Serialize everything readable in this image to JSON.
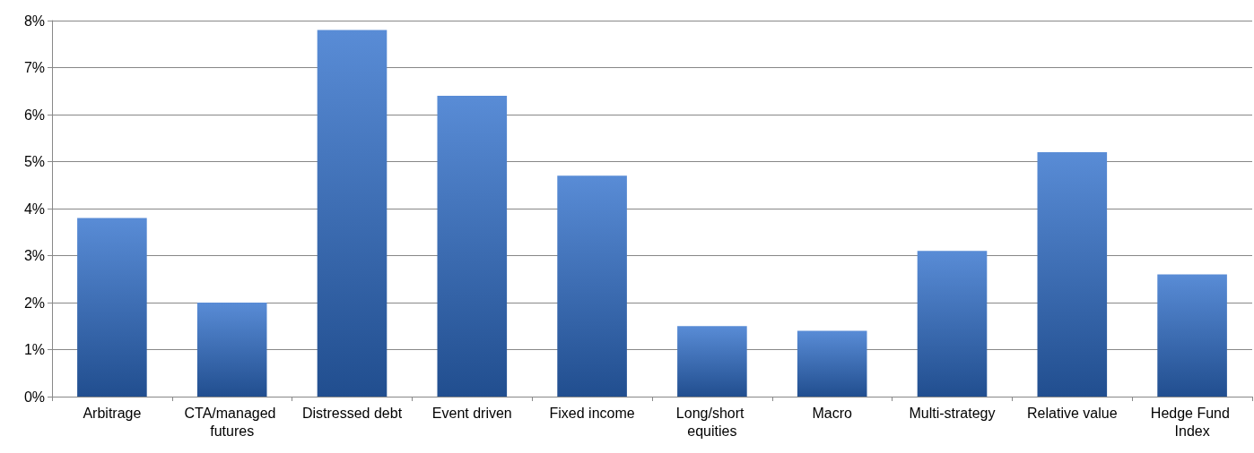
{
  "chart_data": {
    "type": "bar",
    "categories": [
      "Arbitrage",
      "CTA/managed futures",
      "Distressed debt",
      "Event driven",
      "Fixed income",
      "Long/short equities",
      "Macro",
      "Multi-strategy",
      "Relative value",
      "Hedge Fund Index"
    ],
    "values": [
      3.8,
      2.0,
      7.8,
      6.4,
      4.7,
      1.5,
      1.4,
      3.1,
      5.2,
      2.6
    ],
    "color": "#2f6fcc",
    "ylim": [
      0,
      8
    ],
    "yticks": [
      {
        "value": 0,
        "label": "0%"
      },
      {
        "value": 1,
        "label": "1%"
      },
      {
        "value": 2,
        "label": "2%"
      },
      {
        "value": 3,
        "label": "3%"
      },
      {
        "value": 4,
        "label": "4%"
      },
      {
        "value": 5,
        "label": "5%"
      },
      {
        "value": 6,
        "label": "6%"
      },
      {
        "value": 7,
        "label": "7%"
      },
      {
        "value": 8,
        "label": "8%"
      }
    ],
    "grid": "y"
  }
}
